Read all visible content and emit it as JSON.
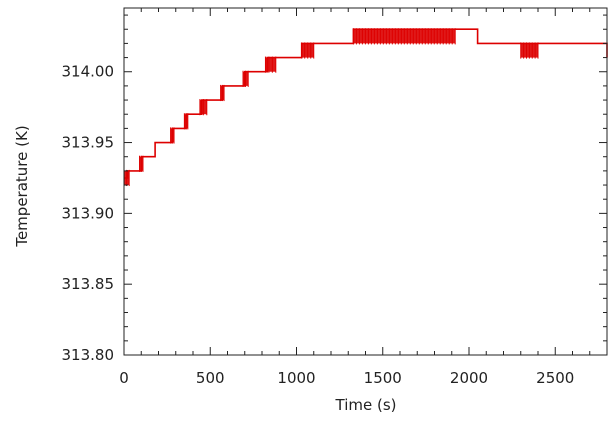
{
  "chart_data": {
    "type": "line",
    "title": "",
    "xlabel": "Time (s)",
    "ylabel": "Temperature (K)",
    "xlim": [
      0,
      2800
    ],
    "ylim": [
      313.8,
      314.045
    ],
    "xticks": [
      0,
      500,
      1000,
      1500,
      2000,
      2500
    ],
    "xtick_labels": [
      "0",
      "500",
      "1000",
      "1500",
      "2000",
      "2500"
    ],
    "yticks": [
      313.8,
      313.85,
      313.9,
      313.95,
      314.0
    ],
    "ytick_labels": [
      "313.80",
      "313.85",
      "313.90",
      "313.95",
      "314.00"
    ],
    "grid": false,
    "legend": "none",
    "series_color": "#dd0000",
    "series": [
      {
        "x": [
          0,
          20,
          20,
          100,
          100,
          180,
          180,
          280,
          280,
          360,
          360,
          450,
          450,
          570,
          570,
          700,
          700,
          830,
          830,
          1030,
          1030,
          1050,
          1100,
          1330,
          1330,
          2050,
          2050,
          2300,
          2400,
          2800,
          2800
        ],
        "y": [
          313.925,
          313.925,
          313.93,
          313.93,
          313.94,
          313.94,
          313.95,
          313.95,
          313.96,
          313.96,
          313.97,
          313.97,
          313.98,
          313.98,
          313.99,
          313.99,
          314.0,
          314.0,
          314.01,
          314.01,
          314.02,
          314.02,
          314.02,
          314.02,
          314.03,
          314.03,
          314.02,
          314.02,
          314.02,
          314.02,
          314.01
        ]
      }
    ],
    "fluctuation_bands": [
      {
        "x_start": 0,
        "x_end": 30,
        "y_low": 313.92,
        "y_high": 313.93
      },
      {
        "x_start": 90,
        "x_end": 110,
        "y_low": 313.93,
        "y_high": 313.94
      },
      {
        "x_start": 270,
        "x_end": 290,
        "y_low": 313.95,
        "y_high": 313.96
      },
      {
        "x_start": 350,
        "x_end": 370,
        "y_low": 313.96,
        "y_high": 313.97
      },
      {
        "x_start": 440,
        "x_end": 480,
        "y_low": 313.97,
        "y_high": 313.98
      },
      {
        "x_start": 560,
        "x_end": 580,
        "y_low": 313.98,
        "y_high": 313.99
      },
      {
        "x_start": 690,
        "x_end": 720,
        "y_low": 313.99,
        "y_high": 314.0
      },
      {
        "x_start": 820,
        "x_end": 880,
        "y_low": 314.0,
        "y_high": 314.01
      },
      {
        "x_start": 1030,
        "x_end": 1100,
        "y_low": 314.01,
        "y_high": 314.02
      },
      {
        "x_start": 1330,
        "x_end": 1920,
        "y_low": 314.02,
        "y_high": 314.03
      },
      {
        "x_start": 2300,
        "x_end": 2400,
        "y_low": 314.01,
        "y_high": 314.02
      }
    ]
  }
}
